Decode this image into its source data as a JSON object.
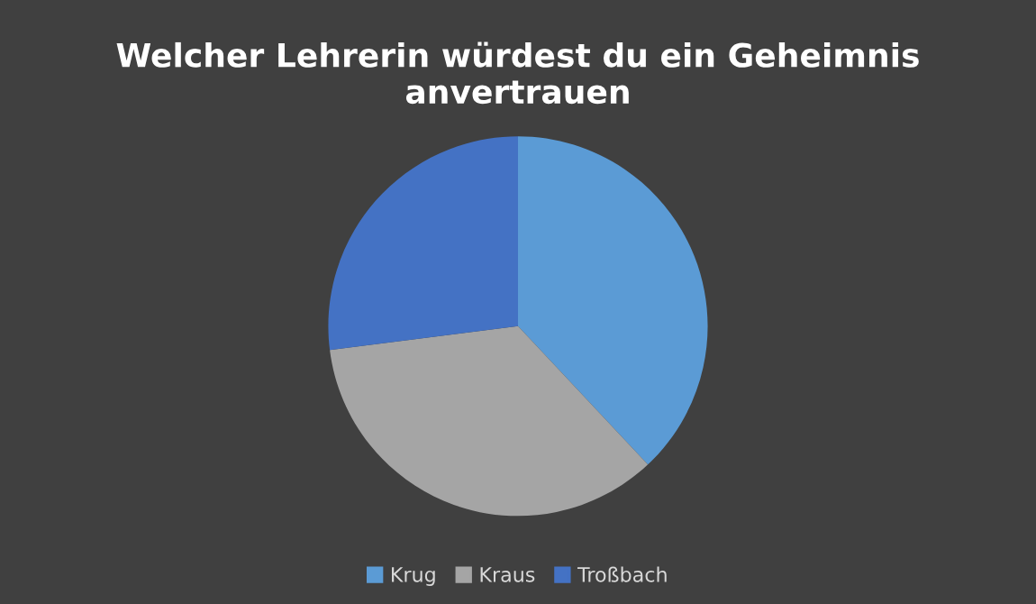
{
  "chart_data": {
    "type": "pie",
    "title": "Welcher Lehrerin würdest du ein Geheimnis anvertrauen",
    "categories": [
      "Krug",
      "Kraus",
      "Troßbach"
    ],
    "values": [
      38,
      35,
      27
    ],
    "colors": [
      "#5b9bd5",
      "#a5a5a5",
      "#4472c4"
    ],
    "legend": "bottom"
  }
}
